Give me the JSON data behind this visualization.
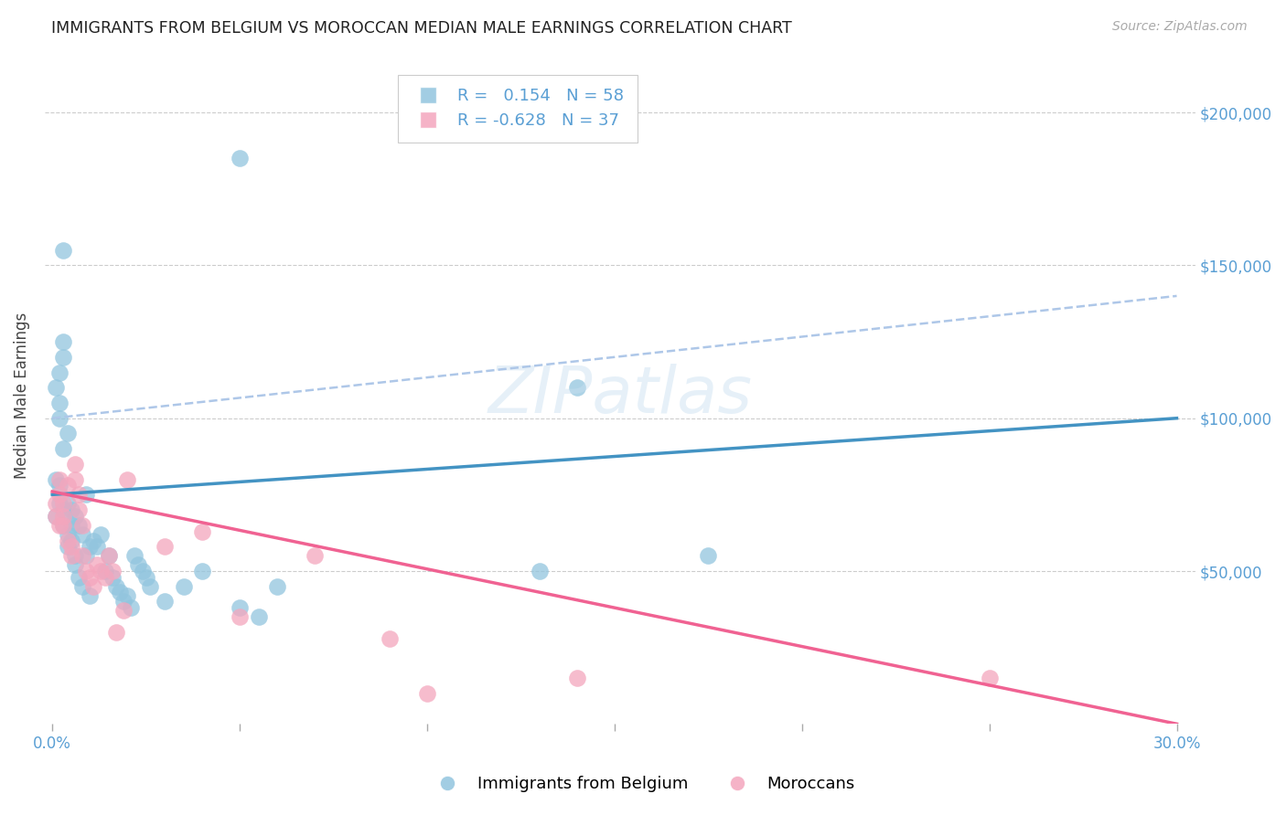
{
  "title": "IMMIGRANTS FROM BELGIUM VS MOROCCAN MEDIAN MALE EARNINGS CORRELATION CHART",
  "source": "Source: ZipAtlas.com",
  "ylabel": "Median Male Earnings",
  "ylim": [
    0,
    215000
  ],
  "xlim": [
    -0.002,
    0.305
  ],
  "ytick_vals": [
    50000,
    100000,
    150000,
    200000
  ],
  "ytick_labels": [
    "$50,000",
    "$100,000",
    "$150,000",
    "$200,000"
  ],
  "xtick_vals": [
    0.0,
    0.05,
    0.1,
    0.15,
    0.2,
    0.25,
    0.3
  ],
  "xtick_labels_show": [
    "0.0%",
    "",
    "",
    "",
    "",
    "",
    "30.0%"
  ],
  "background_color": "#ffffff",
  "grid_color": "#cccccc",
  "series_blue_label": "Immigrants from Belgium",
  "series_pink_label": "Moroccans",
  "blue_R": "0.154",
  "blue_N": "58",
  "pink_R": "-0.628",
  "pink_N": "37",
  "blue_color": "#92c5de",
  "pink_color": "#f4a6bd",
  "blue_line_color": "#4393c3",
  "pink_line_color": "#f06292",
  "dashed_line_color": "#aec7e8",
  "blue_trend": [
    75000,
    100000
  ],
  "pink_trend": [
    76000,
    0
  ],
  "dash_trend": [
    100000,
    140000
  ],
  "blue_x": [
    0.001,
    0.001,
    0.001,
    0.002,
    0.002,
    0.002,
    0.002,
    0.002,
    0.003,
    0.003,
    0.003,
    0.003,
    0.003,
    0.003,
    0.004,
    0.004,
    0.004,
    0.004,
    0.005,
    0.005,
    0.005,
    0.006,
    0.006,
    0.006,
    0.007,
    0.007,
    0.008,
    0.008,
    0.009,
    0.009,
    0.01,
    0.01,
    0.011,
    0.012,
    0.013,
    0.014,
    0.015,
    0.016,
    0.017,
    0.018,
    0.019,
    0.02,
    0.021,
    0.022,
    0.023,
    0.024,
    0.025,
    0.026,
    0.03,
    0.035,
    0.04,
    0.05,
    0.055,
    0.06,
    0.14,
    0.175,
    0.05,
    0.13
  ],
  "blue_y": [
    68000,
    80000,
    110000,
    100000,
    105000,
    78000,
    115000,
    72000,
    155000,
    90000,
    120000,
    65000,
    70000,
    125000,
    72000,
    62000,
    58000,
    95000,
    65000,
    70000,
    60000,
    55000,
    52000,
    68000,
    48000,
    65000,
    45000,
    62000,
    55000,
    75000,
    42000,
    58000,
    60000,
    58000,
    62000,
    50000,
    55000,
    48000,
    45000,
    43000,
    40000,
    42000,
    38000,
    55000,
    52000,
    50000,
    48000,
    45000,
    40000,
    45000,
    50000,
    38000,
    35000,
    45000,
    110000,
    55000,
    185000,
    50000
  ],
  "pink_x": [
    0.001,
    0.001,
    0.002,
    0.002,
    0.002,
    0.003,
    0.003,
    0.003,
    0.004,
    0.004,
    0.005,
    0.005,
    0.006,
    0.006,
    0.007,
    0.007,
    0.008,
    0.008,
    0.009,
    0.01,
    0.011,
    0.012,
    0.013,
    0.014,
    0.015,
    0.016,
    0.017,
    0.019,
    0.03,
    0.04,
    0.05,
    0.07,
    0.09,
    0.1,
    0.14,
    0.25,
    0.02
  ],
  "pink_y": [
    68000,
    72000,
    75000,
    80000,
    65000,
    68000,
    72000,
    65000,
    60000,
    78000,
    58000,
    55000,
    85000,
    80000,
    75000,
    70000,
    65000,
    55000,
    50000,
    48000,
    45000,
    52000,
    50000,
    48000,
    55000,
    50000,
    30000,
    37000,
    58000,
    63000,
    35000,
    55000,
    28000,
    10000,
    15000,
    15000,
    80000
  ]
}
